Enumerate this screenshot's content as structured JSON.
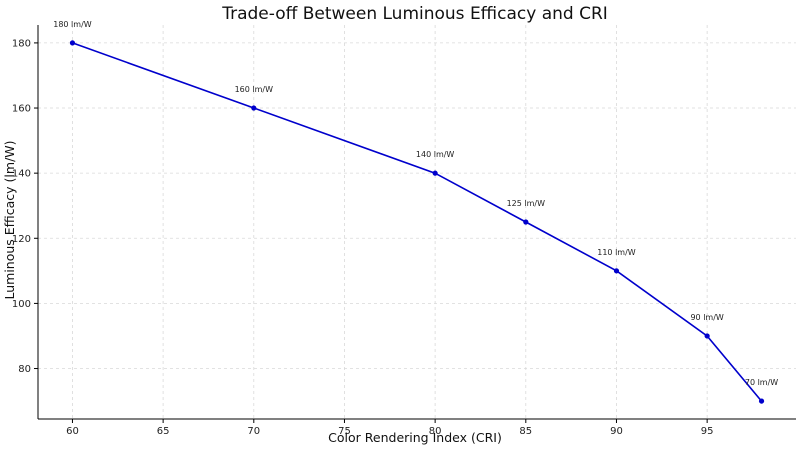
{
  "chart_data": {
    "type": "line",
    "title": "Trade-off Between Luminous Efficacy and CRI",
    "xlabel": "Color Rendering Index (CRI)",
    "ylabel": "Luminous Efficacy (lm/W)",
    "x": [
      60,
      70,
      80,
      85,
      90,
      95,
      98
    ],
    "series": [
      {
        "values": [
          180,
          160,
          140,
          125,
          110,
          90,
          70
        ],
        "labels": [
          "180 lm/W",
          "160 lm/W",
          "140 lm/W",
          "125 lm/W",
          "110 lm/W",
          "90 lm/W",
          "70 lm/W"
        ],
        "color": "#0000cc"
      }
    ],
    "xlim": [
      58.1,
      99.9
    ],
    "ylim": [
      64.5,
      185.5
    ],
    "xticks": [
      60,
      65,
      70,
      75,
      80,
      85,
      90,
      95
    ],
    "yticks": [
      80,
      100,
      120,
      140,
      160,
      180
    ],
    "grid": true
  }
}
